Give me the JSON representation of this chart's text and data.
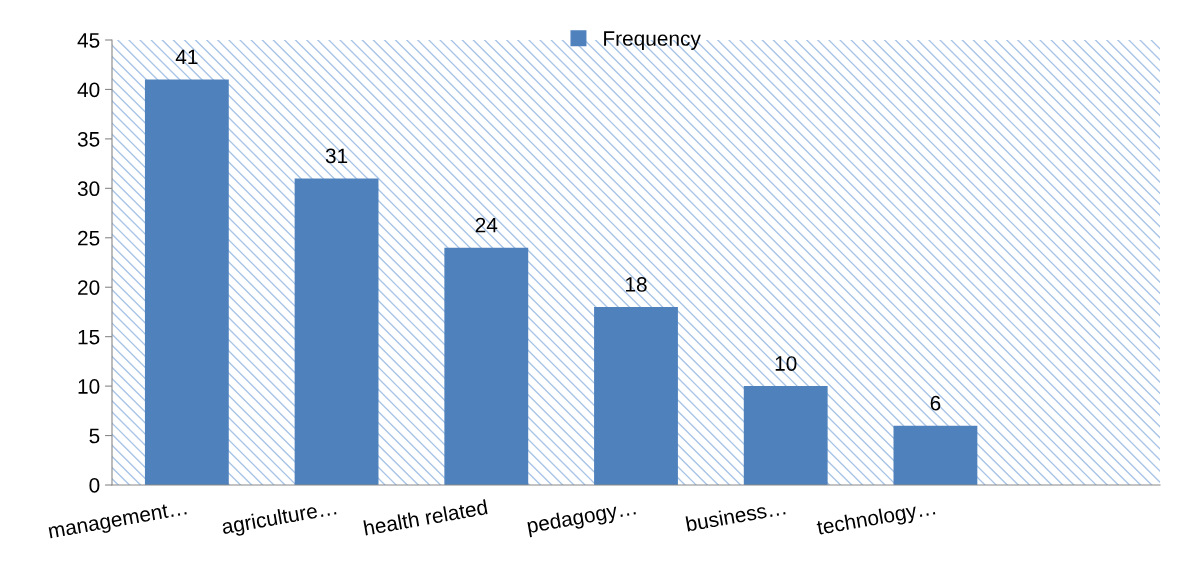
{
  "chart_data": {
    "type": "bar",
    "categories": [
      "management…",
      "agriculture…",
      "health related",
      "pedagogy…",
      "business…",
      "technology…",
      null
    ],
    "series": [
      {
        "name": "Frequency",
        "color": "#4f81bd",
        "values": [
          41,
          31,
          24,
          18,
          10,
          6,
          null
        ]
      }
    ],
    "ylim": [
      0,
      45
    ],
    "yticks": [
      0,
      5,
      10,
      15,
      20,
      25,
      30,
      35,
      40,
      45
    ],
    "data_labels": true,
    "legend": "top",
    "grid": false
  }
}
